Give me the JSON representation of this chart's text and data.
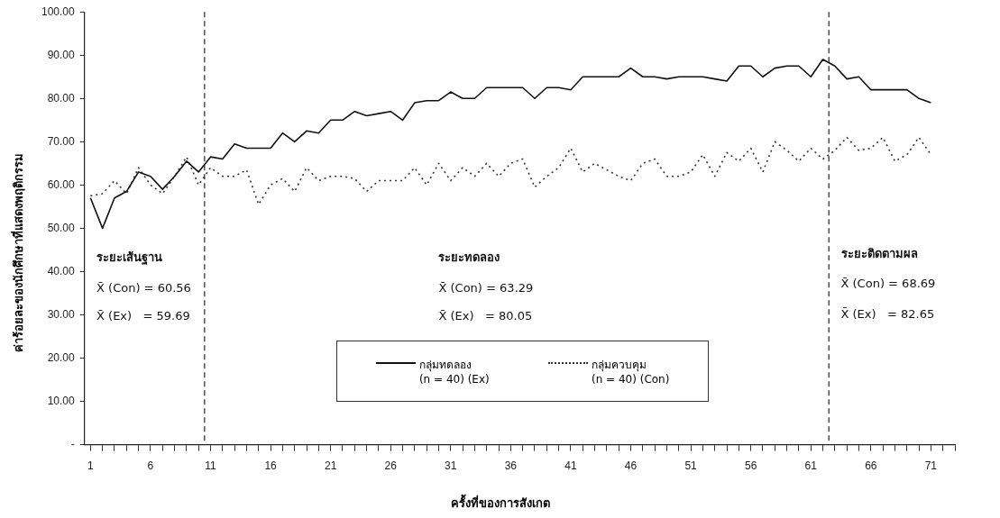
{
  "chart_data": {
    "type": "line",
    "xlabel": "ครั้งที่ของการสังเกต",
    "ylabel": "ค่าร้อยละของนักศึกษาที่แสดงพฤติกรรม",
    "xlim": [
      0.5,
      73
    ],
    "xticks": [
      1,
      {
        "value": 2,
        "label": null
      },
      {
        "value": 3,
        "label": null
      },
      {
        "value": 4,
        "label": null
      },
      {
        "value": 5,
        "label": null
      },
      6,
      {
        "value": 7,
        "label": null
      },
      {
        "value": 8,
        "label": null
      },
      {
        "value": 9,
        "label": null
      },
      {
        "value": 10,
        "label": null
      },
      11,
      {
        "value": 12,
        "label": null
      },
      {
        "value": 13,
        "label": null
      },
      {
        "value": 14,
        "label": null
      },
      {
        "value": 15,
        "label": null
      },
      16,
      {
        "value": 17,
        "label": null
      },
      {
        "value": 18,
        "label": null
      },
      {
        "value": 19,
        "label": null
      },
      {
        "value": 20,
        "label": null
      },
      21,
      {
        "value": 22,
        "label": null
      },
      {
        "value": 23,
        "label": null
      },
      {
        "value": 24,
        "label": null
      },
      {
        "value": 25,
        "label": null
      },
      26,
      {
        "value": 27,
        "label": null
      },
      {
        "value": 28,
        "label": null
      },
      {
        "value": 29,
        "label": null
      },
      {
        "value": 30,
        "label": null
      },
      31,
      {
        "value": 32,
        "label": null
      },
      {
        "value": 33,
        "label": null
      },
      {
        "value": 34,
        "label": null
      },
      {
        "value": 35,
        "label": null
      },
      36,
      {
        "value": 37,
        "label": null
      },
      {
        "value": 38,
        "label": null
      },
      {
        "value": 39,
        "label": null
      },
      {
        "value": 40,
        "label": null
      },
      41,
      {
        "value": 42,
        "label": null
      },
      {
        "value": 43,
        "label": null
      },
      {
        "value": 44,
        "label": null
      },
      {
        "value": 45,
        "label": null
      },
      46,
      {
        "value": 47,
        "label": null
      },
      {
        "value": 48,
        "label": null
      },
      {
        "value": 49,
        "label": null
      },
      {
        "value": 50,
        "label": null
      },
      51,
      {
        "value": 52,
        "label": null
      },
      {
        "value": 53,
        "label": null
      },
      {
        "value": 54,
        "label": null
      },
      {
        "value": 55,
        "label": null
      },
      56,
      {
        "value": 57,
        "label": null
      },
      {
        "value": 58,
        "label": null
      },
      {
        "value": 59,
        "label": null
      },
      {
        "value": 60,
        "label": null
      },
      61,
      {
        "value": 62,
        "label": null
      },
      {
        "value": 63,
        "label": null
      },
      {
        "value": 64,
        "label": null
      },
      {
        "value": 65,
        "label": null
      },
      66,
      {
        "value": 67,
        "label": null
      },
      {
        "value": 68,
        "label": null
      },
      {
        "value": 69,
        "label": null
      },
      {
        "value": 70,
        "label": null
      },
      71,
      {
        "value": 72,
        "label": null
      },
      {
        "value": 73,
        "label": null
      }
    ],
    "ylim": [
      0,
      100
    ],
    "yticks": [
      {
        "value": 0,
        "label": "-"
      },
      {
        "value": 10,
        "label": "10.00"
      },
      {
        "value": 20,
        "label": "20.00"
      },
      {
        "value": 30,
        "label": "30.00"
      },
      {
        "value": 40,
        "label": "40.00"
      },
      {
        "value": 50,
        "label": "50.00"
      },
      {
        "value": 60,
        "label": "60.00"
      },
      {
        "value": 70,
        "label": "70.00"
      },
      {
        "value": 80,
        "label": "80.00"
      },
      {
        "value": 90,
        "label": "90.00"
      },
      {
        "value": 100,
        "label": "100.00"
      }
    ],
    "grid": false,
    "legend": "bottom",
    "marker": "none",
    "x": [
      1,
      2,
      3,
      4,
      5,
      6,
      7,
      8,
      9,
      10,
      11,
      12,
      13,
      14,
      15,
      16,
      17,
      18,
      19,
      20,
      21,
      22,
      23,
      24,
      25,
      26,
      27,
      28,
      29,
      30,
      31,
      32,
      33,
      34,
      35,
      36,
      37,
      38,
      39,
      40,
      41,
      42,
      43,
      44,
      45,
      46,
      47,
      48,
      49,
      50,
      51,
      52,
      53,
      54,
      55,
      56,
      57,
      58,
      59,
      60,
      61,
      62,
      63,
      64,
      65,
      66,
      67,
      68,
      69,
      70,
      71
    ],
    "series": [
      {
        "name": "กลุ่มทดลอง\n(n = 40)   (Ex)",
        "color": "#111111",
        "line_style": "solid",
        "values": [
          57,
          50,
          57,
          58.5,
          63,
          62,
          59,
          62,
          65.5,
          63,
          66.5,
          66,
          69.5,
          68.5,
          68.5,
          68.5,
          72,
          70,
          72.5,
          72,
          75,
          75,
          77,
          76,
          76.5,
          77,
          75,
          79,
          79.5,
          79.5,
          81.5,
          80,
          80,
          82.5,
          82.5,
          82.5,
          82.5,
          80,
          82.5,
          82.5,
          82,
          85,
          85,
          85,
          85,
          87,
          85,
          85,
          84.5,
          85,
          85,
          85,
          84.5,
          84,
          87.5,
          87.5,
          85,
          87,
          87.5,
          87.5,
          85,
          89,
          87.5,
          84.5,
          85,
          82,
          82,
          82,
          82,
          80,
          79
        ]
      },
      {
        "name": "กลุ่มควบคุม\n(n = 40)   (Con)",
        "color": "#333333",
        "line_style": "dotted",
        "values": [
          57.5,
          58,
          61,
          58,
          64,
          60,
          58,
          62,
          66.5,
          60,
          64,
          62,
          62,
          63.5,
          55.5,
          60,
          61.5,
          58.5,
          64,
          61,
          62,
          62,
          61.5,
          58.5,
          61,
          61,
          61,
          64,
          60,
          65,
          61,
          64,
          62,
          65,
          62,
          65,
          66,
          59.5,
          62,
          64,
          68.5,
          63,
          65,
          63.5,
          62,
          61,
          65,
          66,
          62,
          62,
          63,
          67,
          62,
          67.5,
          65.5,
          68.5,
          63,
          70,
          68,
          65.5,
          68.5,
          66,
          68,
          71,
          68,
          68.5,
          71,
          65.5,
          67,
          71,
          67
        ]
      }
    ],
    "ref_lines": [
      {
        "axis": "x",
        "value": 10.5,
        "line_style": "dashed"
      },
      {
        "axis": "x",
        "value": 62.5,
        "line_style": "dashed"
      }
    ],
    "annotations": [
      "ระยะเส้นฐาน",
      "X̄ (Con) = 60.56",
      "X̄ (Ex)   = 59.69",
      "ระยะทดลอง",
      "X̄ (Con) = 63.29",
      "X̄ (Ex)   = 80.05",
      "ระยะติดตามผล",
      "X̄ (Con) = 68.69",
      "X̄ (Ex)   = 82.65"
    ]
  }
}
